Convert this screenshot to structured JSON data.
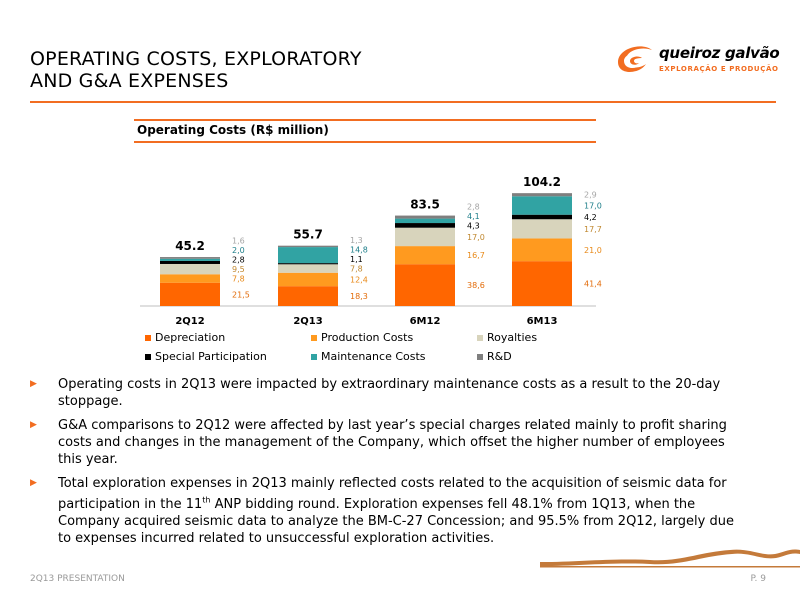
{
  "slide": {
    "title_line1": "OPERATING COSTS, EXPLORATORY",
    "title_line2": "AND G&A EXPENSES",
    "logo_name": "queiroz galvão",
    "logo_sub": "EXPLORAÇÃO E PRODUÇÃO",
    "footer_left": "2Q13 PRESENTATION",
    "footer_right": "P. 9",
    "accent_color": "#f26d21"
  },
  "bullets": [
    {
      "text": "Operating costs in 2Q13 were impacted by extraordinary maintenance costs as a result to the 20-day stoppage."
    },
    {
      "text": "G&A comparisons to 2Q12 were affected by last year’s special charges related mainly to profit sharing costs and changes in the management of the Company, which offset the higher number of employees this year."
    },
    {
      "text_before": "Total exploration expenses in 2Q13 mainly reflected costs related to the acquisition of seismic data for participation in the 11",
      "text_sup": "th",
      "text_after": " ANP bidding round. Exploration expenses fell 48.1% from 1Q13, when the Company acquired seismic data to analyze the BM-C-27 Concession; and 95.5% from 2Q12, largely due to expenses incurred related to unsuccessful exploration activities."
    }
  ],
  "chart_data": {
    "type": "bar",
    "stacked": true,
    "title": "Operating Costs (R$ million)",
    "categories": [
      "2Q12",
      "2Q13",
      "6M12",
      "6M13"
    ],
    "totals": [
      "45.2",
      "55.7",
      "83.5",
      "104.2"
    ],
    "series": [
      {
        "name": "Depreciation",
        "color": "#ff6600",
        "label_color": "#e36c0a",
        "values": [
          21.5,
          18.3,
          38.6,
          41.4
        ],
        "labels": [
          "21,5",
          "18,3",
          "38,6",
          "41,4"
        ]
      },
      {
        "name": "Production Costs",
        "color": "#ff9a1f",
        "label_color": "#e88a1a",
        "values": [
          7.8,
          12.4,
          16.7,
          21.0
        ],
        "labels": [
          "7,8",
          "12,4",
          "16,7",
          "21,0"
        ]
      },
      {
        "name": "Royalties",
        "color": "#d8d4bc",
        "label_color": "#c08830",
        "values": [
          9.5,
          7.8,
          17.0,
          17.7
        ],
        "labels": [
          "9,5",
          "7,8",
          "17,0",
          "17,7"
        ]
      },
      {
        "name": "Special Participation",
        "color": "#000000",
        "label_color": "#000000",
        "values": [
          2.8,
          1.1,
          4.3,
          4.2
        ],
        "labels": [
          "2,8",
          "1,1",
          "4,3",
          "4,2"
        ]
      },
      {
        "name": "Maintenance Costs",
        "color": "#31a3a3",
        "label_color": "#1f7f8a",
        "values": [
          2.0,
          14.8,
          4.1,
          17.0
        ],
        "labels": [
          "2,0",
          "14,8",
          "4,1",
          "17,0"
        ]
      },
      {
        "name": "R&D",
        "color": "#7f7f7f",
        "label_color": "#a6a6a6",
        "values": [
          1.6,
          1.3,
          2.8,
          2.9
        ],
        "labels": [
          "1,6",
          "1,3",
          "2,8",
          "2,9"
        ]
      }
    ],
    "legend_position": "bottom",
    "grid": false
  }
}
